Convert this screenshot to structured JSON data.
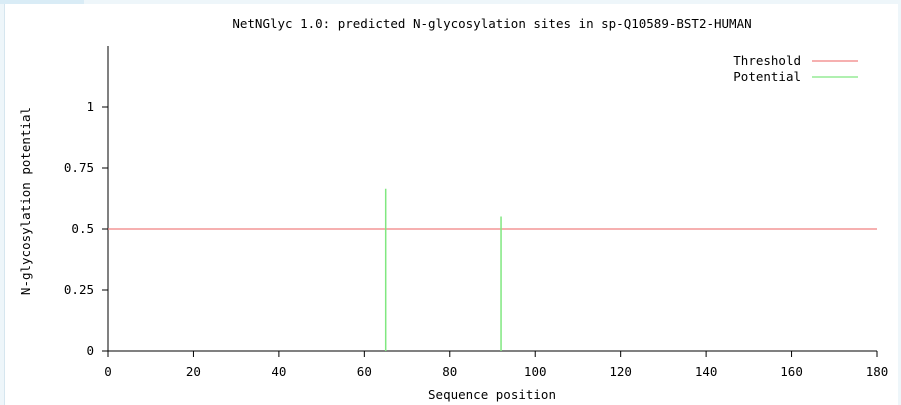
{
  "chart_data": {
    "type": "bar",
    "title": "NetNGlyc 1.0: predicted N-glycosylation sites in sp-Q10589-BST2-HUMAN",
    "xlabel": "Sequence position",
    "ylabel": "N-glycosylation potential",
    "xlim": [
      0,
      180
    ],
    "ylim": [
      0,
      1.25
    ],
    "x_ticks": [
      0,
      20,
      40,
      60,
      80,
      100,
      120,
      140,
      160,
      180
    ],
    "y_ticks": [
      0,
      0.25,
      0.5,
      0.75,
      1
    ],
    "y_tick_labels": [
      "0",
      "0.25",
      "0.5",
      "0.75",
      "1"
    ],
    "grid": false,
    "legend_position": "top-right",
    "threshold": {
      "name": "Threshold",
      "value": 0.5,
      "color": "#f08080"
    },
    "series": [
      {
        "name": "Potential",
        "color": "#80e880",
        "points": [
          {
            "x": 65,
            "y": 0.665
          },
          {
            "x": 92,
            "y": 0.551
          }
        ]
      }
    ],
    "legend": [
      {
        "label": "Threshold",
        "color": "#f08080"
      },
      {
        "label": "Potential",
        "color": "#80e880"
      }
    ]
  }
}
